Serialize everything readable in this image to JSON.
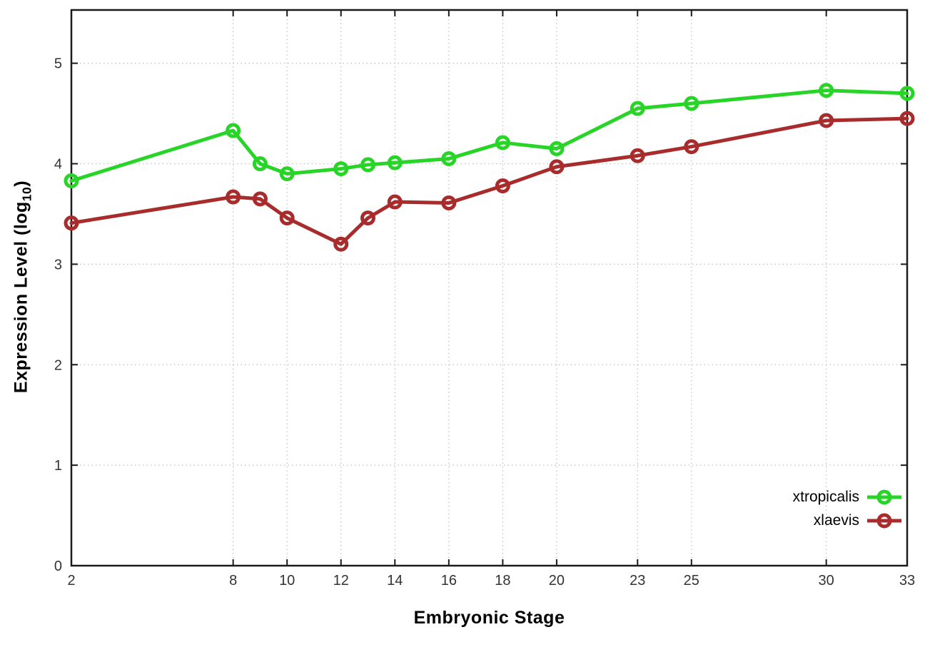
{
  "chart_data": {
    "type": "line",
    "title": "",
    "xlabel": "Embryonic Stage",
    "ylabel_parts": {
      "prefix": "Expression Level (log",
      "sub": "10",
      "suffix": ")"
    },
    "x": [
      2,
      8,
      9,
      10,
      12,
      13,
      14,
      16,
      18,
      20,
      23,
      25,
      30,
      33
    ],
    "xticks": [
      2,
      8,
      10,
      12,
      14,
      16,
      18,
      20,
      23,
      25,
      30,
      33
    ],
    "yticks": [
      0,
      1,
      2,
      3,
      4,
      5
    ],
    "xlim": [
      2,
      33
    ],
    "ylim": [
      0,
      5.53
    ],
    "grid": true,
    "grid_style": "dotted",
    "legend_position": "bottom-right-inside",
    "border_color": "#1a1a1a",
    "grid_color": "#bfbfbf",
    "tick_label_color": "#333333",
    "series": [
      {
        "name": "xtropicalis",
        "color": "#28d428",
        "marker": "open-circle",
        "values": [
          3.83,
          4.33,
          4.0,
          3.9,
          3.95,
          3.99,
          4.01,
          4.05,
          4.21,
          4.15,
          4.55,
          4.6,
          4.73,
          4.7
        ]
      },
      {
        "name": "xlaevis",
        "color": "#a82c2c",
        "marker": "open-circle",
        "values": [
          3.41,
          3.67,
          3.65,
          3.46,
          3.2,
          3.46,
          3.62,
          3.61,
          3.78,
          3.97,
          4.08,
          4.17,
          4.43,
          4.45
        ]
      }
    ]
  }
}
